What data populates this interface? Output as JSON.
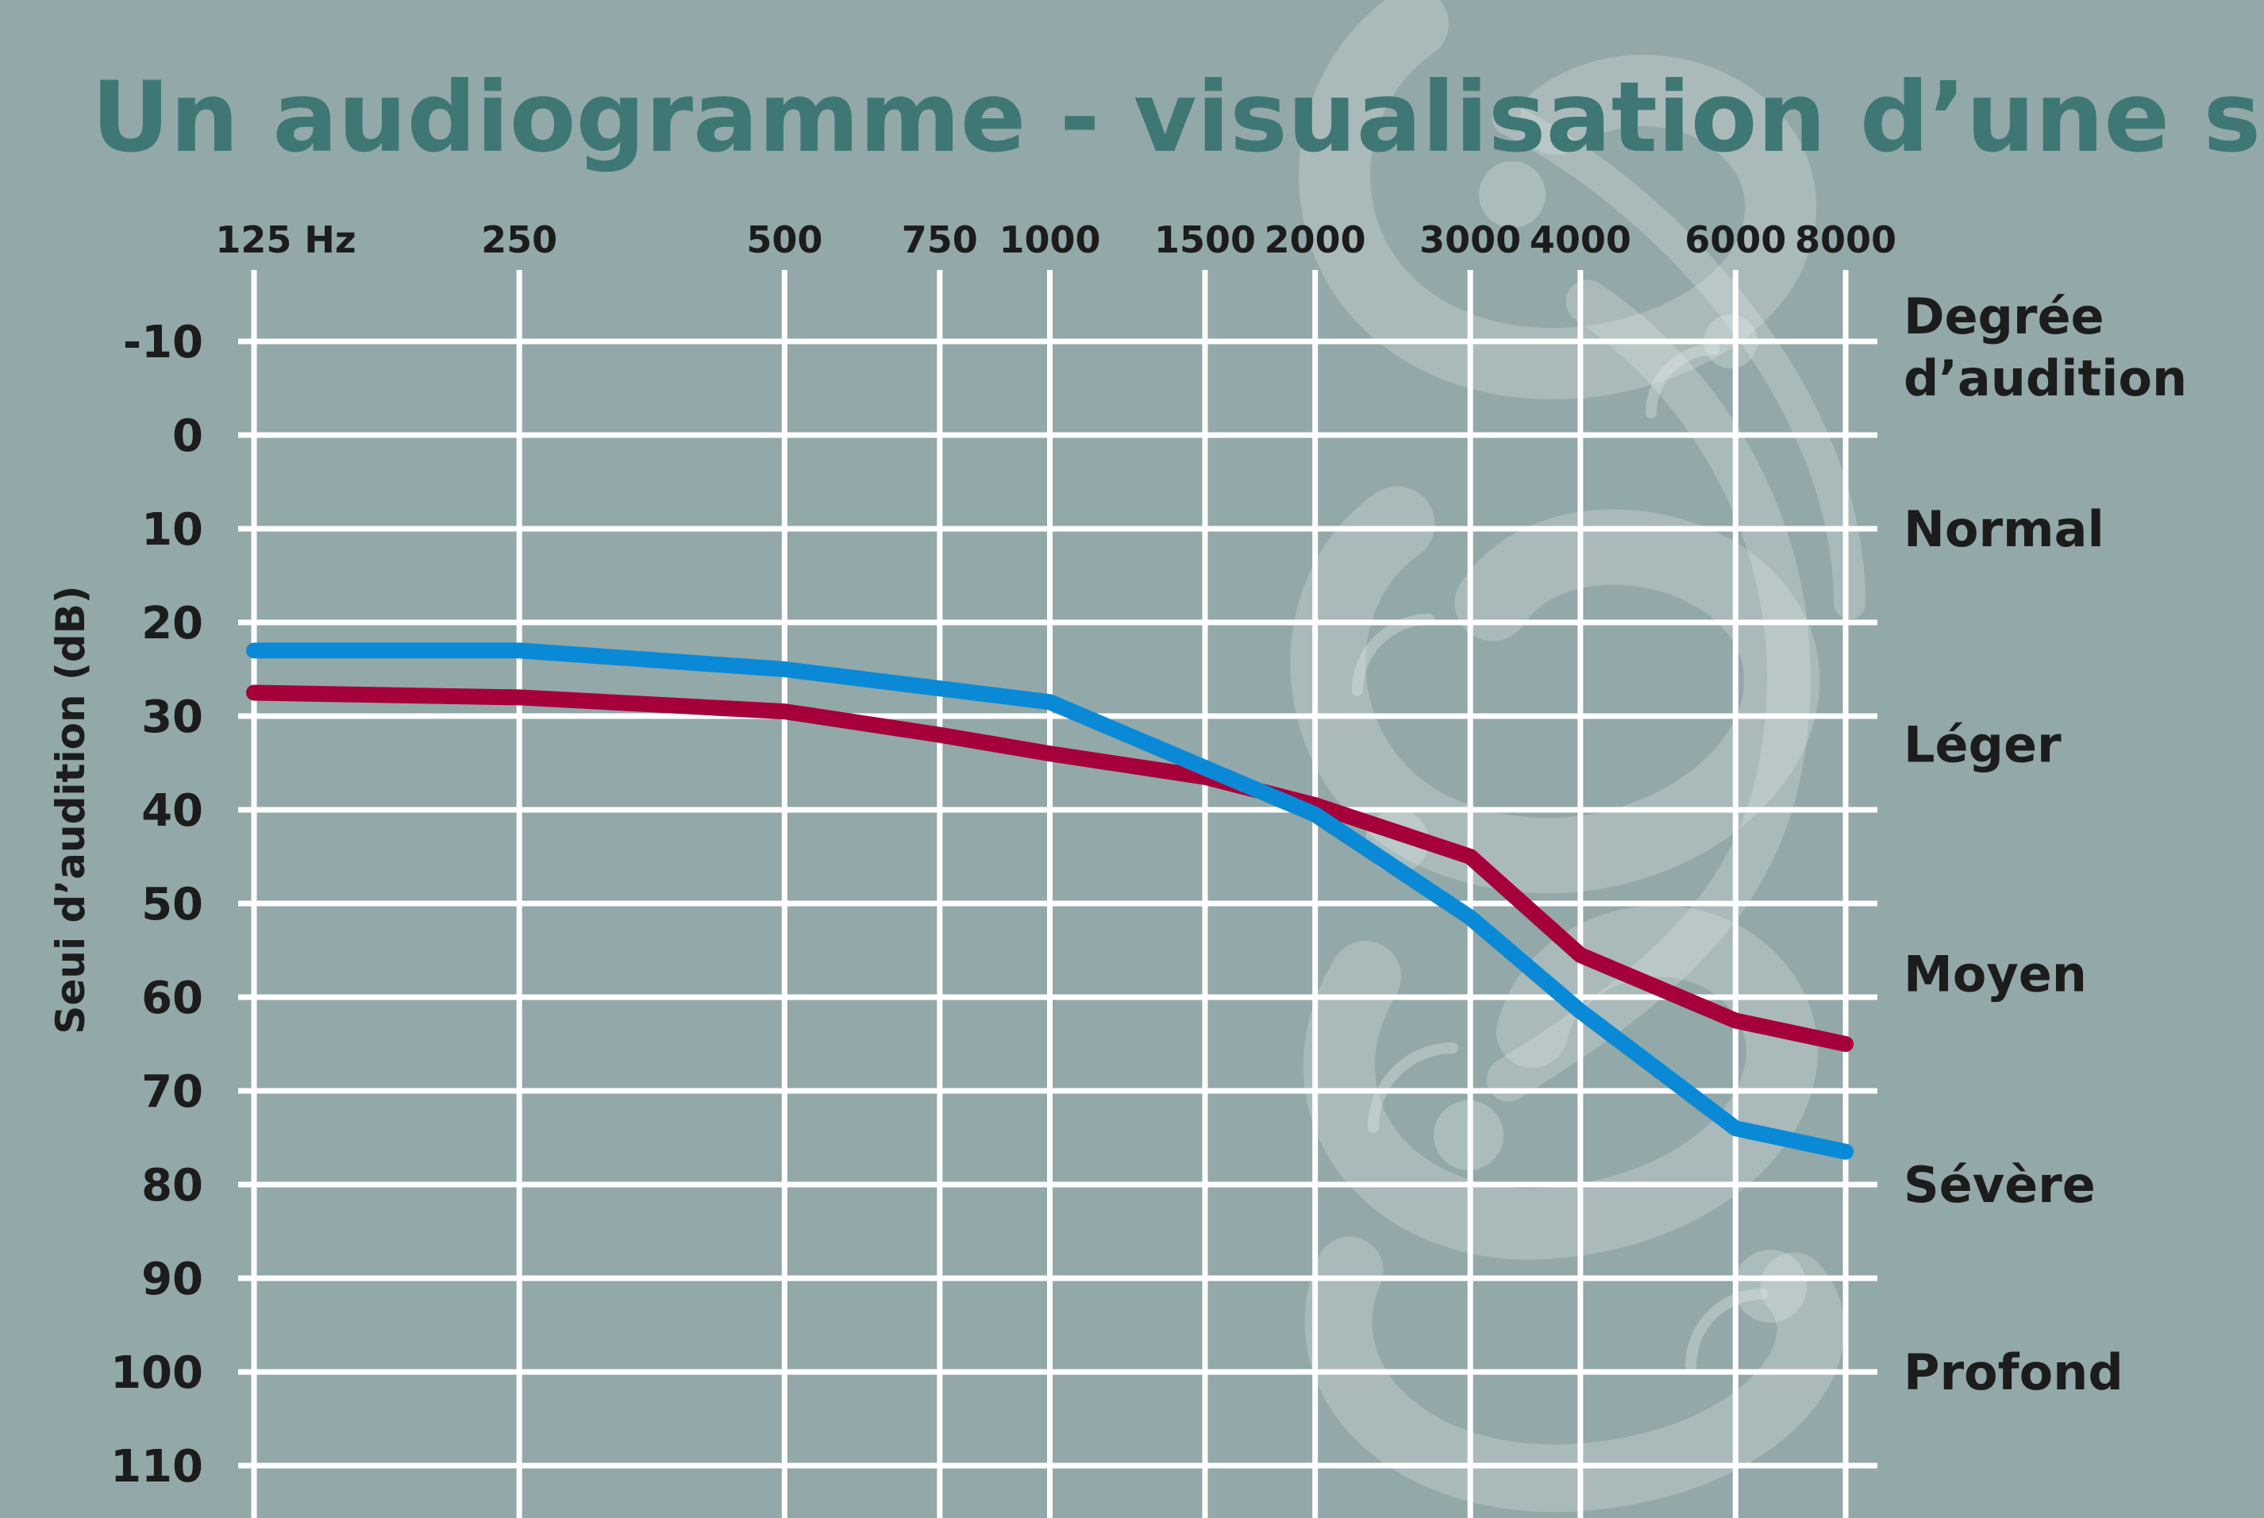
{
  "colors": {
    "background": "#93a8a8",
    "title": "#3f7775",
    "text": "#1c1c1c",
    "grid": "#ffffff",
    "blue_series": "#0a8ad6",
    "red_series": "#a6003a",
    "swirl": "#e5ebeb"
  },
  "chart_data": {
    "type": "line",
    "title": "Un audiogramme - visualisation d’une surdité",
    "ylabel": "Seui d’audition (dB)",
    "x": [
      125,
      250,
      500,
      750,
      1000,
      1500,
      2000,
      3000,
      4000,
      6000,
      8000
    ],
    "x_tick_labels": [
      "125 Hz",
      "250",
      "500",
      "750",
      "1000",
      "1500",
      "2000",
      "3000",
      "4000",
      "6000",
      "8000"
    ],
    "y_ticks": [
      -10,
      0,
      10,
      20,
      30,
      40,
      50,
      60,
      70,
      80,
      90,
      100,
      110
    ],
    "y_tick_labels": [
      "-10",
      "0",
      "10",
      "20",
      "30",
      "40",
      "50",
      "60",
      "70",
      "80",
      "90",
      "100",
      "110"
    ],
    "ylim": [
      -10,
      110
    ],
    "y_inverted": true,
    "x_scale": "log",
    "grid": true,
    "series": [
      {
        "color": "#0a8ad6",
        "x": [
          125,
          250,
          500,
          1000,
          2000,
          3000,
          4000,
          6000,
          8000
        ],
        "values": [
          23,
          23,
          25,
          28.5,
          40.5,
          51.5,
          61.5,
          74,
          76.5
        ]
      },
      {
        "color": "#a6003a",
        "x": [
          125,
          250,
          500,
          750,
          1000,
          1500,
          2000,
          3000,
          4000,
          6000,
          8000
        ],
        "values": [
          27.5,
          28,
          29.5,
          32,
          34,
          36.5,
          39.5,
          45,
          55.5,
          62.5,
          65
        ]
      }
    ],
    "degree_heading": [
      "Degrée",
      "d’audition"
    ],
    "degree_bands": [
      {
        "label": "Normal",
        "db": 10
      },
      {
        "label": "Léger",
        "db": 33
      },
      {
        "label": "Moyen",
        "db": 57.5
      },
      {
        "label": "Sévère",
        "db": 80
      },
      {
        "label": "Profond",
        "db": 100
      }
    ]
  }
}
